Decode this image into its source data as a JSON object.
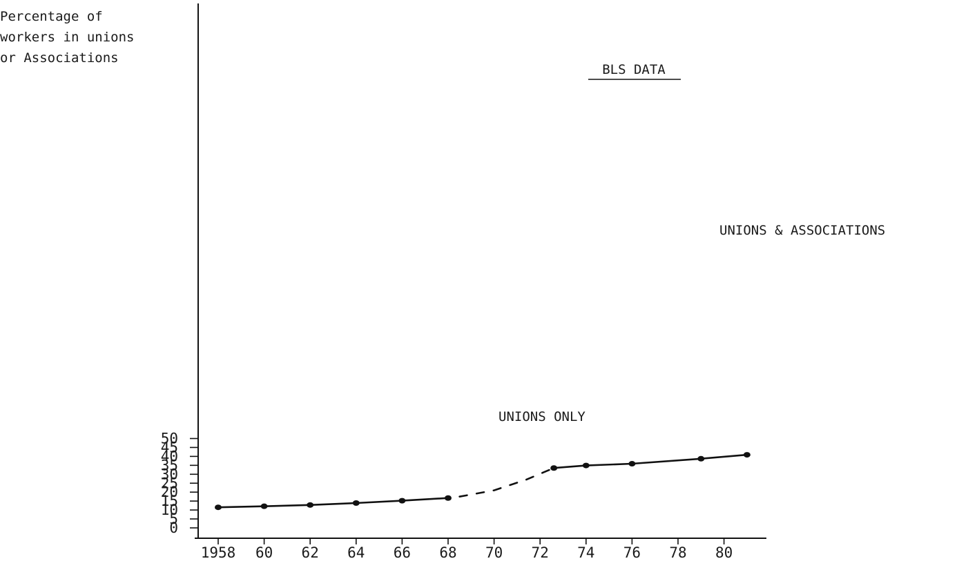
{
  "chart_data": {
    "type": "line",
    "title": "BLS DATA",
    "ylabel_lines": [
      "Percentage of",
      "workers in unions",
      "or Associations"
    ],
    "xlabel": "",
    "ylim": [
      0,
      50
    ],
    "xlim": [
      1958,
      1982
    ],
    "y_ticks": [
      0,
      5,
      10,
      15,
      20,
      25,
      30,
      35,
      40,
      45,
      50
    ],
    "x_ticks": [
      {
        "value": 1958,
        "label": "1958"
      },
      {
        "value": 1960,
        "label": "60"
      },
      {
        "value": 1962,
        "label": "62"
      },
      {
        "value": 1964,
        "label": "64"
      },
      {
        "value": 1966,
        "label": "66"
      },
      {
        "value": 1968,
        "label": "68"
      },
      {
        "value": 1970,
        "label": "70"
      },
      {
        "value": 1972,
        "label": "72"
      },
      {
        "value": 1974,
        "label": "74"
      },
      {
        "value": 1976,
        "label": "76"
      },
      {
        "value": 1978,
        "label": "78"
      },
      {
        "value": 1980,
        "label": "80"
      }
    ],
    "grid": false,
    "series": [
      {
        "name": "UNIONS ONLY",
        "style": "solid",
        "x": [
          1958,
          1960,
          1962,
          1964,
          1966,
          1968
        ],
        "y": [
          11.5,
          12.1,
          12.8,
          13.9,
          15.2,
          16.7
        ]
      },
      {
        "name": "",
        "style": "dashed",
        "x": [
          1968.5,
          1970,
          1971.4,
          1972.6
        ],
        "y": [
          17.5,
          21,
          27,
          33.5
        ]
      },
      {
        "name": "UNIONS & ASSOCIATIONS",
        "style": "solid",
        "x": [
          1972.6,
          1974,
          1976,
          1979,
          1981
        ],
        "y": [
          33.5,
          34.9,
          35.9,
          38.7,
          40.9
        ]
      }
    ],
    "annotations": [
      "UNIONS ONLY",
      "UNIONS & ASSOCIATIONS"
    ]
  }
}
